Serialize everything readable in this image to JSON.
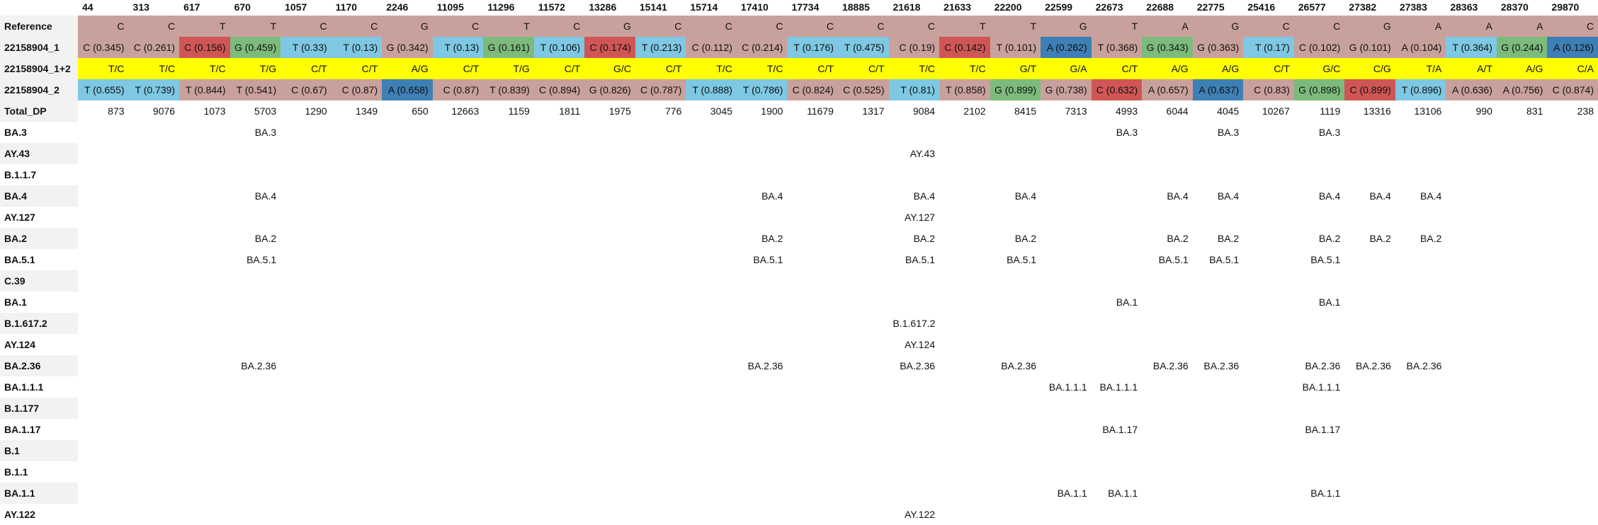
{
  "table": {
    "corner": "",
    "positions": [
      "44",
      "313",
      "617",
      "670",
      "1057",
      "1170",
      "2246",
      "11095",
      "11296",
      "11572",
      "13286",
      "15141",
      "15714",
      "17410",
      "17734",
      "18885",
      "21618",
      "21633",
      "22200",
      "22599",
      "22673",
      "22688",
      "22775",
      "25416",
      "26577",
      "27382",
      "27383",
      "28363",
      "28370",
      "29870"
    ],
    "colors": {
      "rose": "#c9a19c",
      "red": "#d05656",
      "green": "#7dbb7d",
      "lightblue": "#7ec8e3",
      "blue": "#3e7fb5",
      "yellow": "#ffff00",
      "white": "#ffffff"
    },
    "rows": [
      {
        "label": "Reference",
        "kind": "reference",
        "cells": [
          {
            "t": "C",
            "c": "rose"
          },
          {
            "t": "C",
            "c": "rose"
          },
          {
            "t": "T",
            "c": "rose"
          },
          {
            "t": "T",
            "c": "rose"
          },
          {
            "t": "C",
            "c": "rose"
          },
          {
            "t": "C",
            "c": "rose"
          },
          {
            "t": "G",
            "c": "rose"
          },
          {
            "t": "C",
            "c": "rose"
          },
          {
            "t": "T",
            "c": "rose"
          },
          {
            "t": "C",
            "c": "rose"
          },
          {
            "t": "G",
            "c": "rose"
          },
          {
            "t": "C",
            "c": "rose"
          },
          {
            "t": "C",
            "c": "rose"
          },
          {
            "t": "C",
            "c": "rose"
          },
          {
            "t": "C",
            "c": "rose"
          },
          {
            "t": "C",
            "c": "rose"
          },
          {
            "t": "C",
            "c": "rose"
          },
          {
            "t": "T",
            "c": "rose"
          },
          {
            "t": "T",
            "c": "rose"
          },
          {
            "t": "G",
            "c": "rose"
          },
          {
            "t": "T",
            "c": "rose"
          },
          {
            "t": "A",
            "c": "rose"
          },
          {
            "t": "G",
            "c": "rose"
          },
          {
            "t": "C",
            "c": "rose"
          },
          {
            "t": "C",
            "c": "rose"
          },
          {
            "t": "G",
            "c": "rose"
          },
          {
            "t": "A",
            "c": "rose"
          },
          {
            "t": "A",
            "c": "rose"
          },
          {
            "t": "A",
            "c": "rose"
          },
          {
            "t": "C",
            "c": "rose"
          }
        ]
      },
      {
        "label": "22158904_1",
        "kind": "sample",
        "cells": [
          {
            "t": "C (0.345)",
            "c": "rose"
          },
          {
            "t": "C (0.261)",
            "c": "rose"
          },
          {
            "t": "C (0.156)",
            "c": "red"
          },
          {
            "t": "G (0.459)",
            "c": "green"
          },
          {
            "t": "T (0.33)",
            "c": "lightblue"
          },
          {
            "t": "T (0.13)",
            "c": "lightblue"
          },
          {
            "t": "G (0.342)",
            "c": "rose"
          },
          {
            "t": "T (0.13)",
            "c": "lightblue"
          },
          {
            "t": "G (0.161)",
            "c": "green"
          },
          {
            "t": "T (0.106)",
            "c": "lightblue"
          },
          {
            "t": "C (0.174)",
            "c": "red"
          },
          {
            "t": "T (0.213)",
            "c": "lightblue"
          },
          {
            "t": "C (0.112)",
            "c": "rose"
          },
          {
            "t": "C (0.214)",
            "c": "rose"
          },
          {
            "t": "T (0.176)",
            "c": "lightblue"
          },
          {
            "t": "T (0.475)",
            "c": "lightblue"
          },
          {
            "t": "C (0.19)",
            "c": "rose"
          },
          {
            "t": "C (0.142)",
            "c": "red"
          },
          {
            "t": "T (0.101)",
            "c": "rose"
          },
          {
            "t": "A (0.262)",
            "c": "blue"
          },
          {
            "t": "T (0.368)",
            "c": "rose"
          },
          {
            "t": "G (0.343)",
            "c": "green"
          },
          {
            "t": "G (0.363)",
            "c": "rose"
          },
          {
            "t": "T (0.17)",
            "c": "lightblue"
          },
          {
            "t": "C (0.102)",
            "c": "rose"
          },
          {
            "t": "G (0.101)",
            "c": "rose"
          },
          {
            "t": "A (0.104)",
            "c": "rose"
          },
          {
            "t": "T (0.364)",
            "c": "lightblue"
          },
          {
            "t": "G (0.244)",
            "c": "green"
          },
          {
            "t": "A (0.126)",
            "c": "blue"
          }
        ]
      },
      {
        "label": "22158904_1+2",
        "kind": "combined",
        "cells": [
          {
            "t": "T/C",
            "c": "yellow"
          },
          {
            "t": "T/C",
            "c": "yellow"
          },
          {
            "t": "T/C",
            "c": "yellow"
          },
          {
            "t": "T/G",
            "c": "yellow"
          },
          {
            "t": "C/T",
            "c": "yellow"
          },
          {
            "t": "C/T",
            "c": "yellow"
          },
          {
            "t": "A/G",
            "c": "yellow"
          },
          {
            "t": "C/T",
            "c": "yellow"
          },
          {
            "t": "T/G",
            "c": "yellow"
          },
          {
            "t": "C/T",
            "c": "yellow"
          },
          {
            "t": "G/C",
            "c": "yellow"
          },
          {
            "t": "C/T",
            "c": "yellow"
          },
          {
            "t": "T/C",
            "c": "yellow"
          },
          {
            "t": "T/C",
            "c": "yellow"
          },
          {
            "t": "C/T",
            "c": "yellow"
          },
          {
            "t": "C/T",
            "c": "yellow"
          },
          {
            "t": "T/C",
            "c": "yellow"
          },
          {
            "t": "T/C",
            "c": "yellow"
          },
          {
            "t": "G/T",
            "c": "yellow"
          },
          {
            "t": "G/A",
            "c": "yellow"
          },
          {
            "t": "C/T",
            "c": "yellow"
          },
          {
            "t": "A/G",
            "c": "yellow"
          },
          {
            "t": "A/G",
            "c": "yellow"
          },
          {
            "t": "C/T",
            "c": "yellow"
          },
          {
            "t": "G/C",
            "c": "yellow"
          },
          {
            "t": "C/G",
            "c": "yellow"
          },
          {
            "t": "T/A",
            "c": "yellow"
          },
          {
            "t": "A/T",
            "c": "yellow"
          },
          {
            "t": "A/G",
            "c": "yellow"
          },
          {
            "t": "C/A",
            "c": "yellow"
          }
        ]
      },
      {
        "label": "22158904_2",
        "kind": "sample",
        "cells": [
          {
            "t": "T (0.655)",
            "c": "lightblue"
          },
          {
            "t": "T (0.739)",
            "c": "lightblue"
          },
          {
            "t": "T (0.844)",
            "c": "rose"
          },
          {
            "t": "T (0.541)",
            "c": "rose"
          },
          {
            "t": "C (0.67)",
            "c": "rose"
          },
          {
            "t": "C (0.87)",
            "c": "rose"
          },
          {
            "t": "A (0.658)",
            "c": "blue"
          },
          {
            "t": "C (0.87)",
            "c": "rose"
          },
          {
            "t": "T (0.839)",
            "c": "rose"
          },
          {
            "t": "C (0.894)",
            "c": "rose"
          },
          {
            "t": "G (0.826)",
            "c": "rose"
          },
          {
            "t": "C (0.787)",
            "c": "rose"
          },
          {
            "t": "T (0.888)",
            "c": "lightblue"
          },
          {
            "t": "T (0.786)",
            "c": "lightblue"
          },
          {
            "t": "C (0.824)",
            "c": "rose"
          },
          {
            "t": "C (0.525)",
            "c": "rose"
          },
          {
            "t": "T (0.81)",
            "c": "lightblue"
          },
          {
            "t": "T (0.858)",
            "c": "rose"
          },
          {
            "t": "G (0.899)",
            "c": "green"
          },
          {
            "t": "G (0.738)",
            "c": "rose"
          },
          {
            "t": "C (0.632)",
            "c": "red"
          },
          {
            "t": "A (0.657)",
            "c": "rose"
          },
          {
            "t": "A (0.637)",
            "c": "blue"
          },
          {
            "t": "C (0.83)",
            "c": "rose"
          },
          {
            "t": "G (0.898)",
            "c": "green"
          },
          {
            "t": "C (0.899)",
            "c": "red"
          },
          {
            "t": "T (0.896)",
            "c": "lightblue"
          },
          {
            "t": "A (0.636)",
            "c": "rose"
          },
          {
            "t": "A (0.756)",
            "c": "rose"
          },
          {
            "t": "C (0.874)",
            "c": "rose"
          }
        ]
      },
      {
        "label": "Total_DP",
        "kind": "depth",
        "cells": [
          {
            "t": "873",
            "c": "white"
          },
          {
            "t": "9076",
            "c": "white"
          },
          {
            "t": "1073",
            "c": "white"
          },
          {
            "t": "5703",
            "c": "white"
          },
          {
            "t": "1290",
            "c": "white"
          },
          {
            "t": "1349",
            "c": "white"
          },
          {
            "t": "650",
            "c": "white"
          },
          {
            "t": "12663",
            "c": "white"
          },
          {
            "t": "1159",
            "c": "white"
          },
          {
            "t": "1811",
            "c": "white"
          },
          {
            "t": "1975",
            "c": "white"
          },
          {
            "t": "776",
            "c": "white"
          },
          {
            "t": "3045",
            "c": "white"
          },
          {
            "t": "1900",
            "c": "white"
          },
          {
            "t": "11679",
            "c": "white"
          },
          {
            "t": "1317",
            "c": "white"
          },
          {
            "t": "9084",
            "c": "white"
          },
          {
            "t": "2102",
            "c": "white"
          },
          {
            "t": "8415",
            "c": "white"
          },
          {
            "t": "7313",
            "c": "white"
          },
          {
            "t": "4993",
            "c": "white"
          },
          {
            "t": "6044",
            "c": "white"
          },
          {
            "t": "4045",
            "c": "white"
          },
          {
            "t": "10267",
            "c": "white"
          },
          {
            "t": "1119",
            "c": "white"
          },
          {
            "t": "13316",
            "c": "white"
          },
          {
            "t": "13106",
            "c": "white"
          },
          {
            "t": "990",
            "c": "white"
          },
          {
            "t": "831",
            "c": "white"
          },
          {
            "t": "238",
            "c": "white"
          }
        ]
      }
    ],
    "lineages": [
      {
        "label": "BA.3",
        "marks": {
          "670": "BA.3",
          "22673": "BA.3",
          "22775": "BA.3",
          "26577": "BA.3"
        }
      },
      {
        "label": "AY.43",
        "marks": {
          "21618": "AY.43"
        }
      },
      {
        "label": "B.1.1.7",
        "marks": {}
      },
      {
        "label": "BA.4",
        "marks": {
          "670": "BA.4",
          "17410": "BA.4",
          "21618": "BA.4",
          "22200": "BA.4",
          "22688": "BA.4",
          "22775": "BA.4",
          "26577": "BA.4",
          "27382": "BA.4",
          "27383": "BA.4"
        }
      },
      {
        "label": "AY.127",
        "marks": {
          "21618": "AY.127"
        }
      },
      {
        "label": "BA.2",
        "marks": {
          "670": "BA.2",
          "17410": "BA.2",
          "21618": "BA.2",
          "22200": "BA.2",
          "22688": "BA.2",
          "22775": "BA.2",
          "26577": "BA.2",
          "27382": "BA.2",
          "27383": "BA.2"
        }
      },
      {
        "label": "BA.5.1",
        "marks": {
          "670": "BA.5.1",
          "17410": "BA.5.1",
          "21618": "BA.5.1",
          "22200": "BA.5.1",
          "22688": "BA.5.1",
          "22775": "BA.5.1",
          "26577": "BA.5.1"
        }
      },
      {
        "label": "C.39",
        "marks": {}
      },
      {
        "label": "BA.1",
        "marks": {
          "22673": "BA.1",
          "26577": "BA.1"
        }
      },
      {
        "label": "B.1.617.2",
        "marks": {
          "21618": "B.1.617.2"
        }
      },
      {
        "label": "AY.124",
        "marks": {
          "21618": "AY.124"
        }
      },
      {
        "label": "BA.2.36",
        "marks": {
          "670": "BA.2.36",
          "17410": "BA.2.36",
          "21618": "BA.2.36",
          "22200": "BA.2.36",
          "22688": "BA.2.36",
          "22775": "BA.2.36",
          "26577": "BA.2.36",
          "27382": "BA.2.36",
          "27383": "BA.2.36"
        }
      },
      {
        "label": "BA.1.1.1",
        "marks": {
          "22599": "BA.1.1.1",
          "22673": "BA.1.1.1",
          "26577": "BA.1.1.1"
        }
      },
      {
        "label": "B.1.177",
        "marks": {}
      },
      {
        "label": "BA.1.17",
        "marks": {
          "22673": "BA.1.17",
          "26577": "BA.1.17"
        }
      },
      {
        "label": "B.1",
        "marks": {}
      },
      {
        "label": "B.1.1",
        "marks": {}
      },
      {
        "label": "BA.1.1",
        "marks": {
          "22599": "BA.1.1",
          "22673": "BA.1.1",
          "26577": "BA.1.1"
        }
      },
      {
        "label": "AY.122",
        "marks": {
          "21618": "AY.122"
        }
      }
    ]
  }
}
